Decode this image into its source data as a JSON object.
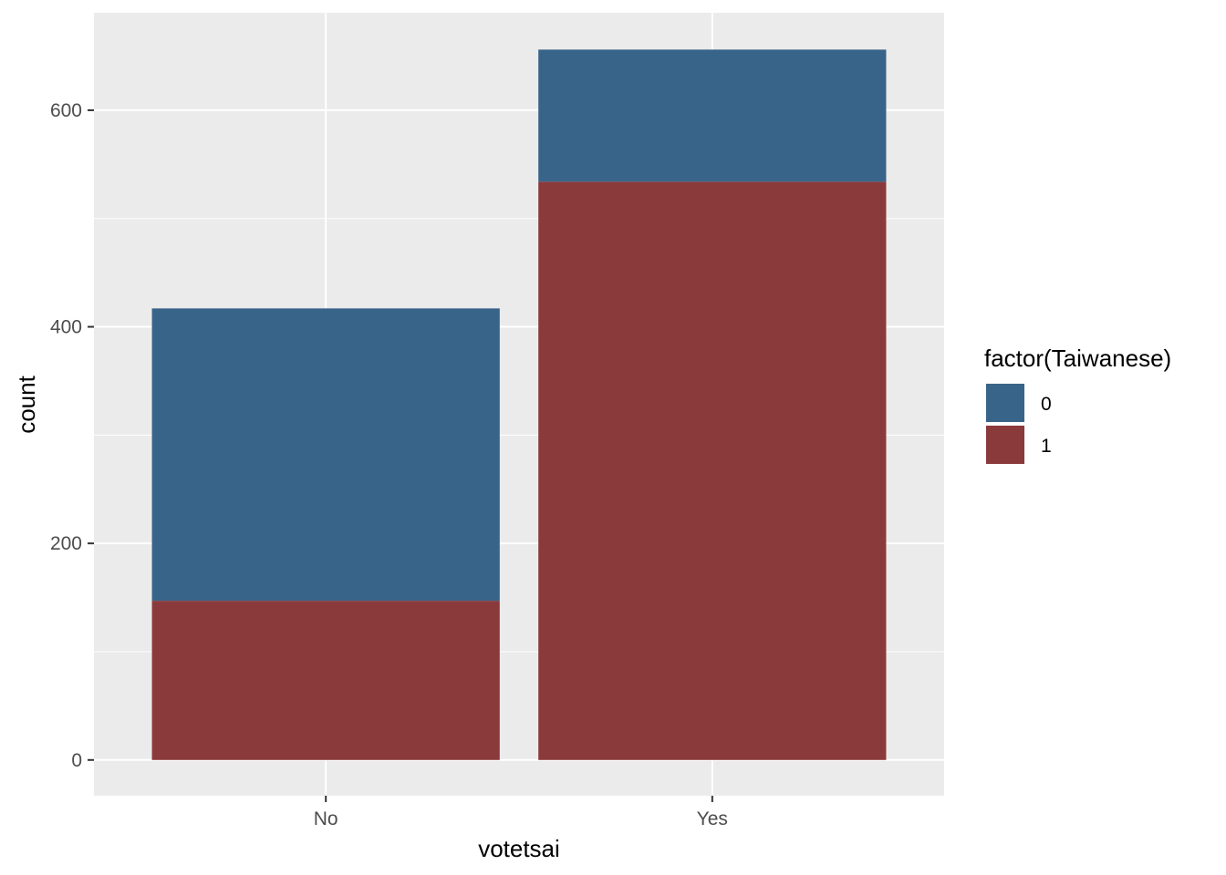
{
  "chart_data": {
    "type": "bar",
    "stacked": true,
    "categories": [
      "No",
      "Yes"
    ],
    "series": [
      {
        "name": "0",
        "values": [
          270,
          122
        ],
        "color": "#396489"
      },
      {
        "name": "1",
        "values": [
          147,
          534
        ],
        "color": "#8B3A3C"
      }
    ],
    "xlabel": "votetsai",
    "ylabel": "count",
    "legend_title": "factor(Taiwanese)",
    "legend_position": "right",
    "ylim": [
      -33,
      690
    ],
    "yticks": [
      0,
      200,
      400,
      600
    ],
    "grid": true,
    "panel_background": "#EBEBEB",
    "grid_color": "#FFFFFF"
  }
}
